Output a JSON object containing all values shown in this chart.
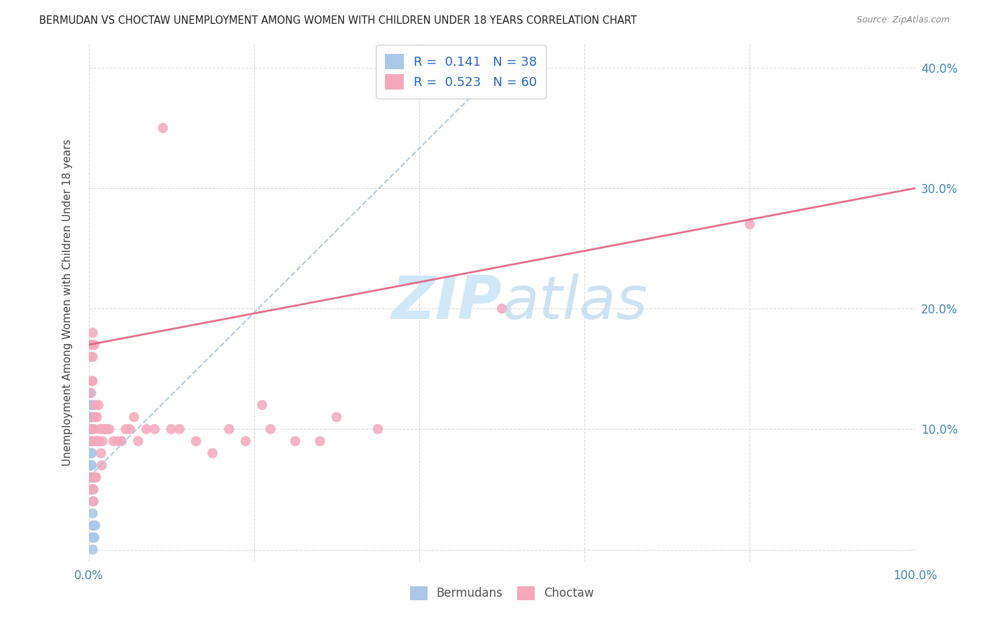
{
  "title": "BERMUDAN VS CHOCTAW UNEMPLOYMENT AMONG WOMEN WITH CHILDREN UNDER 18 YEARS CORRELATION CHART",
  "source": "Source: ZipAtlas.com",
  "ylabel": "Unemployment Among Women with Children Under 18 years",
  "xlim": [
    0.0,
    1.0
  ],
  "ylim": [
    -0.01,
    0.42
  ],
  "x_tick_positions": [
    0.0,
    0.2,
    0.4,
    0.6,
    0.8,
    1.0
  ],
  "x_tick_labels": [
    "0.0%",
    "",
    "",
    "",
    "",
    "100.0%"
  ],
  "y_tick_positions": [
    0.0,
    0.1,
    0.2,
    0.3,
    0.4
  ],
  "y_tick_labels_right": [
    "",
    "10.0%",
    "20.0%",
    "30.0%",
    "40.0%"
  ],
  "bermudan_R": 0.141,
  "bermudan_N": 38,
  "choctaw_R": 0.523,
  "choctaw_N": 60,
  "bermudan_scatter_color": "#aac8e8",
  "choctaw_scatter_color": "#f5a8bc",
  "bermudan_line_color": "#99bcd8",
  "choctaw_line_color": "#e06080",
  "legend_text_color": "#2266cc",
  "watermark_color": "#d0e8f8",
  "grid_color": "#dddddd",
  "title_color": "#222222",
  "source_color": "#888888",
  "tick_label_color": "#4488bb",
  "choctaw_line_y0": 0.17,
  "choctaw_line_y1": 0.3,
  "bermudan_line_x0": 0.0,
  "bermudan_line_y0": 0.06,
  "bermudan_line_x1": 0.52,
  "bermudan_line_y1": 0.415,
  "bermudan_x": [
    0.001,
    0.001,
    0.001,
    0.001,
    0.002,
    0.002,
    0.002,
    0.002,
    0.002,
    0.002,
    0.003,
    0.003,
    0.003,
    0.003,
    0.003,
    0.003,
    0.003,
    0.003,
    0.003,
    0.004,
    0.004,
    0.004,
    0.004,
    0.004,
    0.004,
    0.004,
    0.004,
    0.004,
    0.005,
    0.005,
    0.005,
    0.005,
    0.005,
    0.005,
    0.006,
    0.006,
    0.007,
    0.008
  ],
  "bermudan_y": [
    0.07,
    0.09,
    0.1,
    0.11,
    0.06,
    0.07,
    0.08,
    0.09,
    0.1,
    0.11,
    0.05,
    0.06,
    0.07,
    0.08,
    0.09,
    0.1,
    0.11,
    0.12,
    0.13,
    0.05,
    0.06,
    0.07,
    0.08,
    0.09,
    0.1,
    0.11,
    0.12,
    0.01,
    0.02,
    0.03,
    0.04,
    0.05,
    0.06,
    0.0,
    0.01,
    0.02,
    0.01,
    0.02
  ],
  "choctaw_x": [
    0.001,
    0.002,
    0.002,
    0.003,
    0.003,
    0.003,
    0.003,
    0.004,
    0.004,
    0.005,
    0.005,
    0.005,
    0.005,
    0.006,
    0.006,
    0.006,
    0.007,
    0.007,
    0.007,
    0.008,
    0.008,
    0.008,
    0.009,
    0.01,
    0.01,
    0.011,
    0.012,
    0.013,
    0.014,
    0.015,
    0.016,
    0.017,
    0.018,
    0.02,
    0.022,
    0.025,
    0.03,
    0.035,
    0.04,
    0.045,
    0.05,
    0.055,
    0.06,
    0.07,
    0.08,
    0.09,
    0.1,
    0.11,
    0.13,
    0.15,
    0.17,
    0.19,
    0.21,
    0.22,
    0.25,
    0.28,
    0.3,
    0.35,
    0.5,
    0.8
  ],
  "choctaw_y": [
    0.06,
    0.13,
    0.16,
    0.05,
    0.06,
    0.09,
    0.17,
    0.14,
    0.17,
    0.1,
    0.14,
    0.16,
    0.18,
    0.04,
    0.05,
    0.06,
    0.1,
    0.11,
    0.17,
    0.06,
    0.09,
    0.12,
    0.06,
    0.09,
    0.11,
    0.09,
    0.12,
    0.09,
    0.1,
    0.08,
    0.07,
    0.09,
    0.1,
    0.1,
    0.1,
    0.1,
    0.09,
    0.09,
    0.09,
    0.1,
    0.1,
    0.11,
    0.09,
    0.1,
    0.1,
    0.35,
    0.1,
    0.1,
    0.09,
    0.08,
    0.1,
    0.09,
    0.12,
    0.1,
    0.09,
    0.09,
    0.11,
    0.1,
    0.2,
    0.27
  ]
}
